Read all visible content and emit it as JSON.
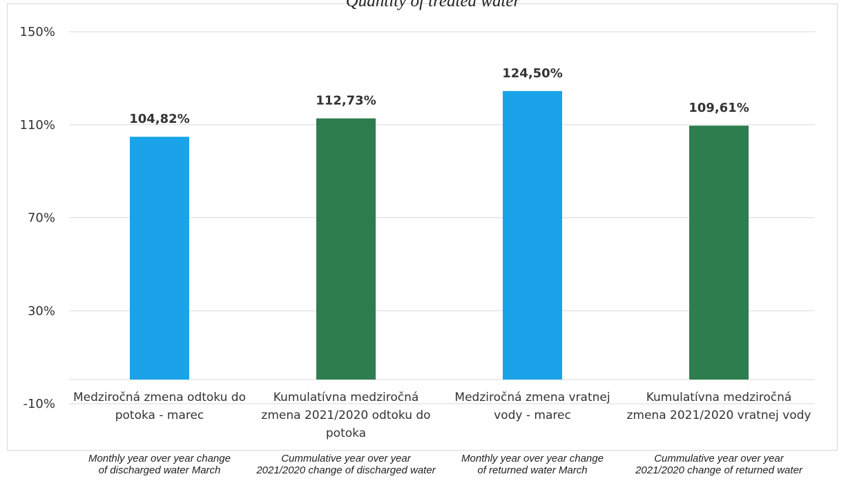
{
  "chart_data": {
    "type": "bar",
    "title": "Quantity of treated water",
    "categories": [
      "Medziročná zmena odtoku do\npotoka - marec",
      "Kumulatívna medziročná\nzmena 2021/2020 odtoku do\npotoka",
      "Medziročná zmena vratnej\nvody - marec",
      "Kumulatívna medziročná\nzmena 2021/2020 vratnej vody"
    ],
    "categories_en": [
      "Monthly year over year change\nof discharged water March",
      "Cummulative year over year\n2021/2020 change of discharged water",
      "Monthly year over year change\nof returned water March",
      "Cummulative year over year\n2021/2020 change of returned water"
    ],
    "values": [
      104.82,
      112.73,
      124.5,
      109.61
    ],
    "data_labels": [
      "104,82%",
      "112,73%",
      "124,50%",
      "109,61%"
    ],
    "bar_colors": [
      "#1aa3e8",
      "#2e7d4f",
      "#1aa3e8",
      "#2e7d4f"
    ],
    "ylim": [
      -10,
      150
    ],
    "yticks": [
      150,
      110,
      70,
      30,
      -10
    ],
    "ytick_labels": [
      "150%",
      "110%",
      "70%",
      "30%",
      "-10%"
    ],
    "grid": true,
    "gridline_color": "#d9d9d9"
  }
}
